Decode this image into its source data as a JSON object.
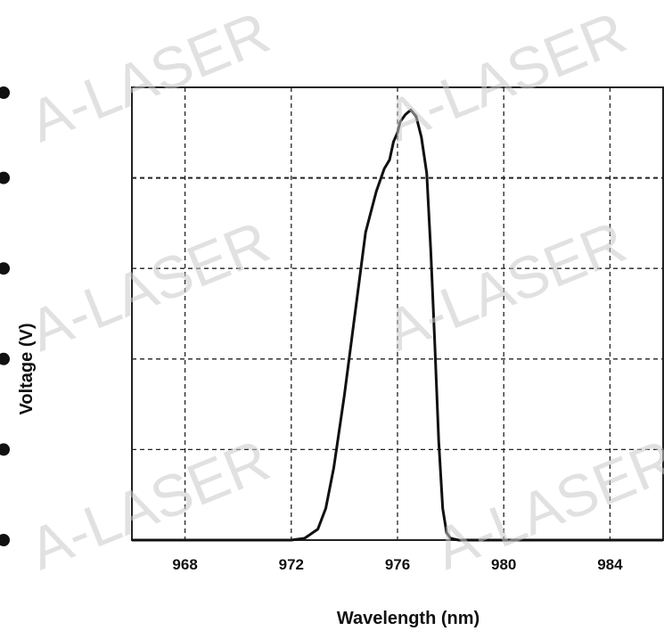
{
  "watermark": "A-LASER",
  "chart_data": {
    "type": "line",
    "xlabel": "Wavelength (nm)",
    "ylabel": "Voltage (V)",
    "xlim": [
      966,
      986
    ],
    "x_ticks": [
      968,
      972,
      976,
      980,
      984
    ],
    "ylim": [
      0,
      5
    ],
    "grid": true,
    "series": [
      {
        "x": [
          966,
          968,
          970,
          972,
          972.5,
          973,
          973.3,
          973.6,
          974,
          974.4,
          974.8,
          975.2,
          975.5,
          975.7,
          975.85,
          976,
          976.1,
          976.3,
          976.5,
          976.7,
          976.9,
          977.1,
          977.25,
          977.4,
          977.55,
          977.7,
          977.85,
          978,
          978.3,
          978.6,
          980,
          982,
          984,
          986
        ],
        "y": [
          0,
          0,
          0,
          0,
          0.02,
          0.12,
          0.35,
          0.8,
          1.6,
          2.5,
          3.4,
          3.85,
          4.1,
          4.2,
          4.4,
          4.5,
          4.62,
          4.7,
          4.75,
          4.68,
          4.45,
          4.05,
          3.2,
          2.2,
          1.1,
          0.35,
          0.08,
          0.02,
          0,
          0,
          0,
          0,
          0,
          0
        ]
      }
    ]
  }
}
